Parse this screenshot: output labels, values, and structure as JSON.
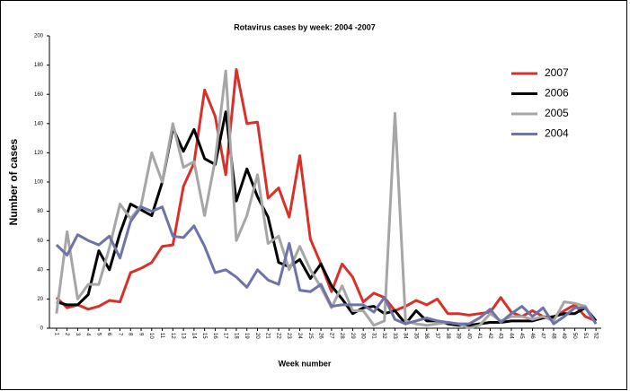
{
  "chart_data": {
    "type": "line",
    "title": "Rotavirus cases by week: 2004 -2007",
    "x_label": "Week number",
    "y_label": "Number of cases",
    "categories": [
      "1",
      "2",
      "3",
      "4",
      "5",
      "6",
      "7",
      "8",
      "9",
      "10",
      "11",
      "12",
      "13",
      "14",
      "15",
      "16",
      "17",
      "18",
      "19",
      "20",
      "21",
      "22",
      "23",
      "24",
      "25",
      "26",
      "27",
      "28",
      "29",
      "30",
      "31",
      "32",
      "33",
      "34",
      "35",
      "36",
      "37",
      "38",
      "39",
      "40",
      "41",
      "42",
      "43",
      "44",
      "45",
      "46",
      "47",
      "48",
      "49",
      "50",
      "51",
      "52"
    ],
    "series": [
      {
        "name": "2007",
        "color": "#d9302a",
        "values": [
          21,
          14,
          16,
          13,
          15,
          19,
          18,
          38,
          41,
          45,
          56,
          57,
          97,
          113,
          163,
          145,
          105,
          177,
          140,
          141,
          89,
          96,
          76,
          118,
          61,
          44,
          25,
          44,
          35,
          18,
          24,
          21,
          12,
          15,
          19,
          16,
          20,
          10,
          10,
          9,
          10,
          11,
          21,
          11,
          8,
          12,
          8,
          7,
          12,
          16,
          8,
          5
        ]
      },
      {
        "name": "2006",
        "color": "#000000",
        "values": [
          18,
          16,
          16,
          23,
          53,
          40,
          65,
          85,
          81,
          77,
          100,
          137,
          121,
          136,
          116,
          112,
          148,
          87,
          109,
          90,
          76,
          45,
          42,
          47,
          34,
          44,
          29,
          20,
          10,
          14,
          15,
          10,
          12,
          3,
          12,
          5,
          5,
          3,
          2,
          2,
          3,
          4,
          4,
          5,
          5,
          5,
          7,
          8,
          10,
          10,
          14,
          5
        ]
      },
      {
        "name": "2005",
        "color": "#a6a6a6",
        "values": [
          10,
          66,
          20,
          30,
          30,
          55,
          85,
          75,
          84,
          120,
          100,
          140,
          110,
          114,
          77,
          115,
          176,
          60,
          77,
          105,
          58,
          63,
          40,
          56,
          40,
          28,
          14,
          29,
          12,
          12,
          2,
          5,
          147,
          5,
          3,
          2,
          3,
          4,
          3,
          0,
          2,
          10,
          5,
          8,
          8,
          6,
          8,
          5,
          18,
          17,
          15,
          3
        ]
      },
      {
        "name": "2004",
        "color": "#6e73a8",
        "values": [
          57,
          50,
          64,
          60,
          57,
          63,
          48,
          73,
          83,
          80,
          83,
          63,
          62,
          70,
          56,
          38,
          40,
          35,
          28,
          40,
          33,
          30,
          58,
          26,
          25,
          30,
          15,
          16,
          16,
          16,
          11,
          21,
          6,
          3,
          5,
          7,
          5,
          4,
          3,
          3,
          7,
          13,
          4,
          10,
          15,
          8,
          14,
          3,
          8,
          14,
          14,
          3
        ]
      }
    ],
    "ylim": [
      0,
      200
    ],
    "yticks": [
      0,
      20,
      40,
      60,
      80,
      100,
      120,
      140,
      160,
      180,
      200
    ]
  }
}
